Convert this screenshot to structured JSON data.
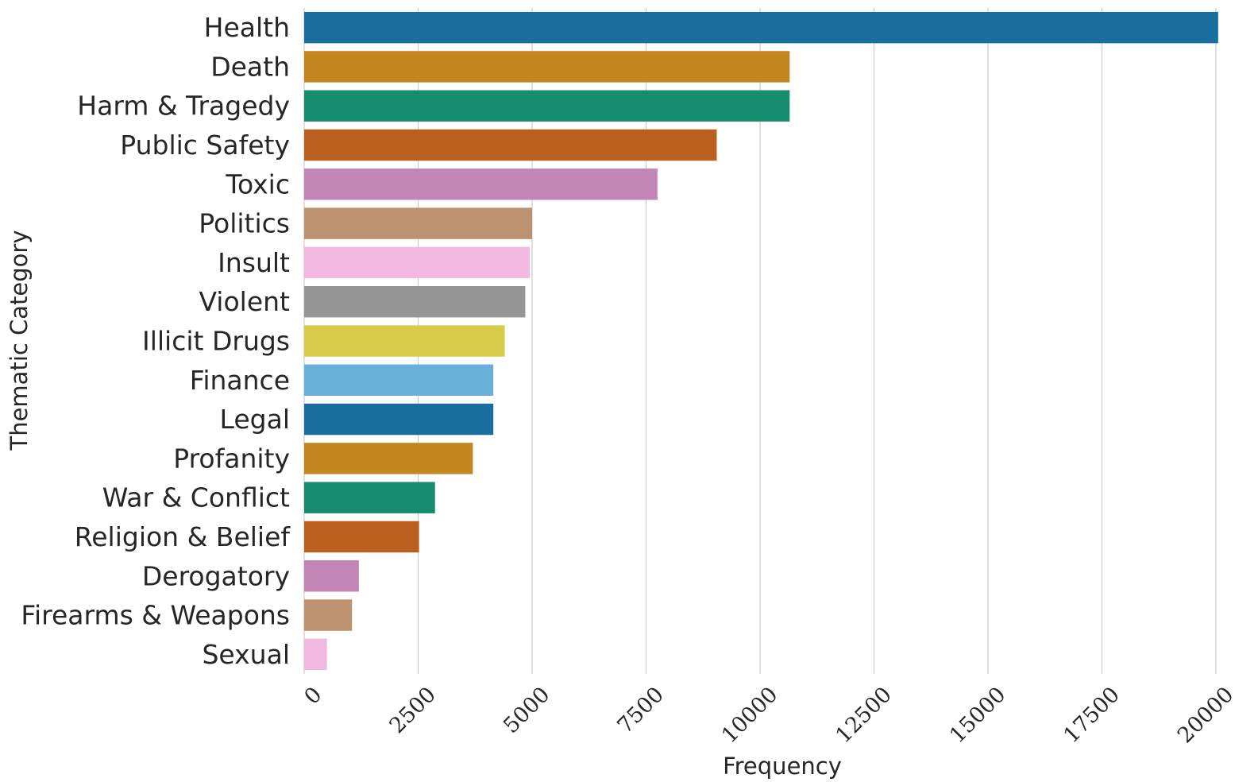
{
  "chart_data": {
    "type": "bar",
    "orientation": "horizontal",
    "title": "",
    "xlabel": "Frequency",
    "ylabel": "Thematic Category",
    "xlim": [
      0,
      20000
    ],
    "xticks": [
      0,
      2500,
      5000,
      7500,
      10000,
      12500,
      15000,
      17500,
      20000
    ],
    "grid": "vertical",
    "categories": [
      "Health",
      "Death",
      "Harm & Tragedy",
      "Public Safety",
      "Toxic",
      "Politics",
      "Insult",
      "Violent",
      "Illicit Drugs",
      "Finance",
      "Legal",
      "Profanity",
      "War & Conflict",
      "Religion & Belief",
      "Derogatory",
      "Firearms & Weapons",
      "Sexual"
    ],
    "values": [
      20050,
      10650,
      10650,
      9050,
      7750,
      5000,
      4950,
      4850,
      4400,
      4150,
      4150,
      3700,
      2870,
      2520,
      1200,
      1050,
      500
    ],
    "colors": [
      "#1a6e9e",
      "#c4861f",
      "#158c6b",
      "#ba5f1d",
      "#c385b6",
      "#bd9270",
      "#f1b9df",
      "#959595",
      "#d6cc4a",
      "#68b0d8",
      "#1a6e9e",
      "#c4861f",
      "#158c6b",
      "#ba5f1d",
      "#c385b6",
      "#bd9270",
      "#f1b9df"
    ],
    "grid_color": "#cccccc",
    "text_color": "#262626"
  }
}
